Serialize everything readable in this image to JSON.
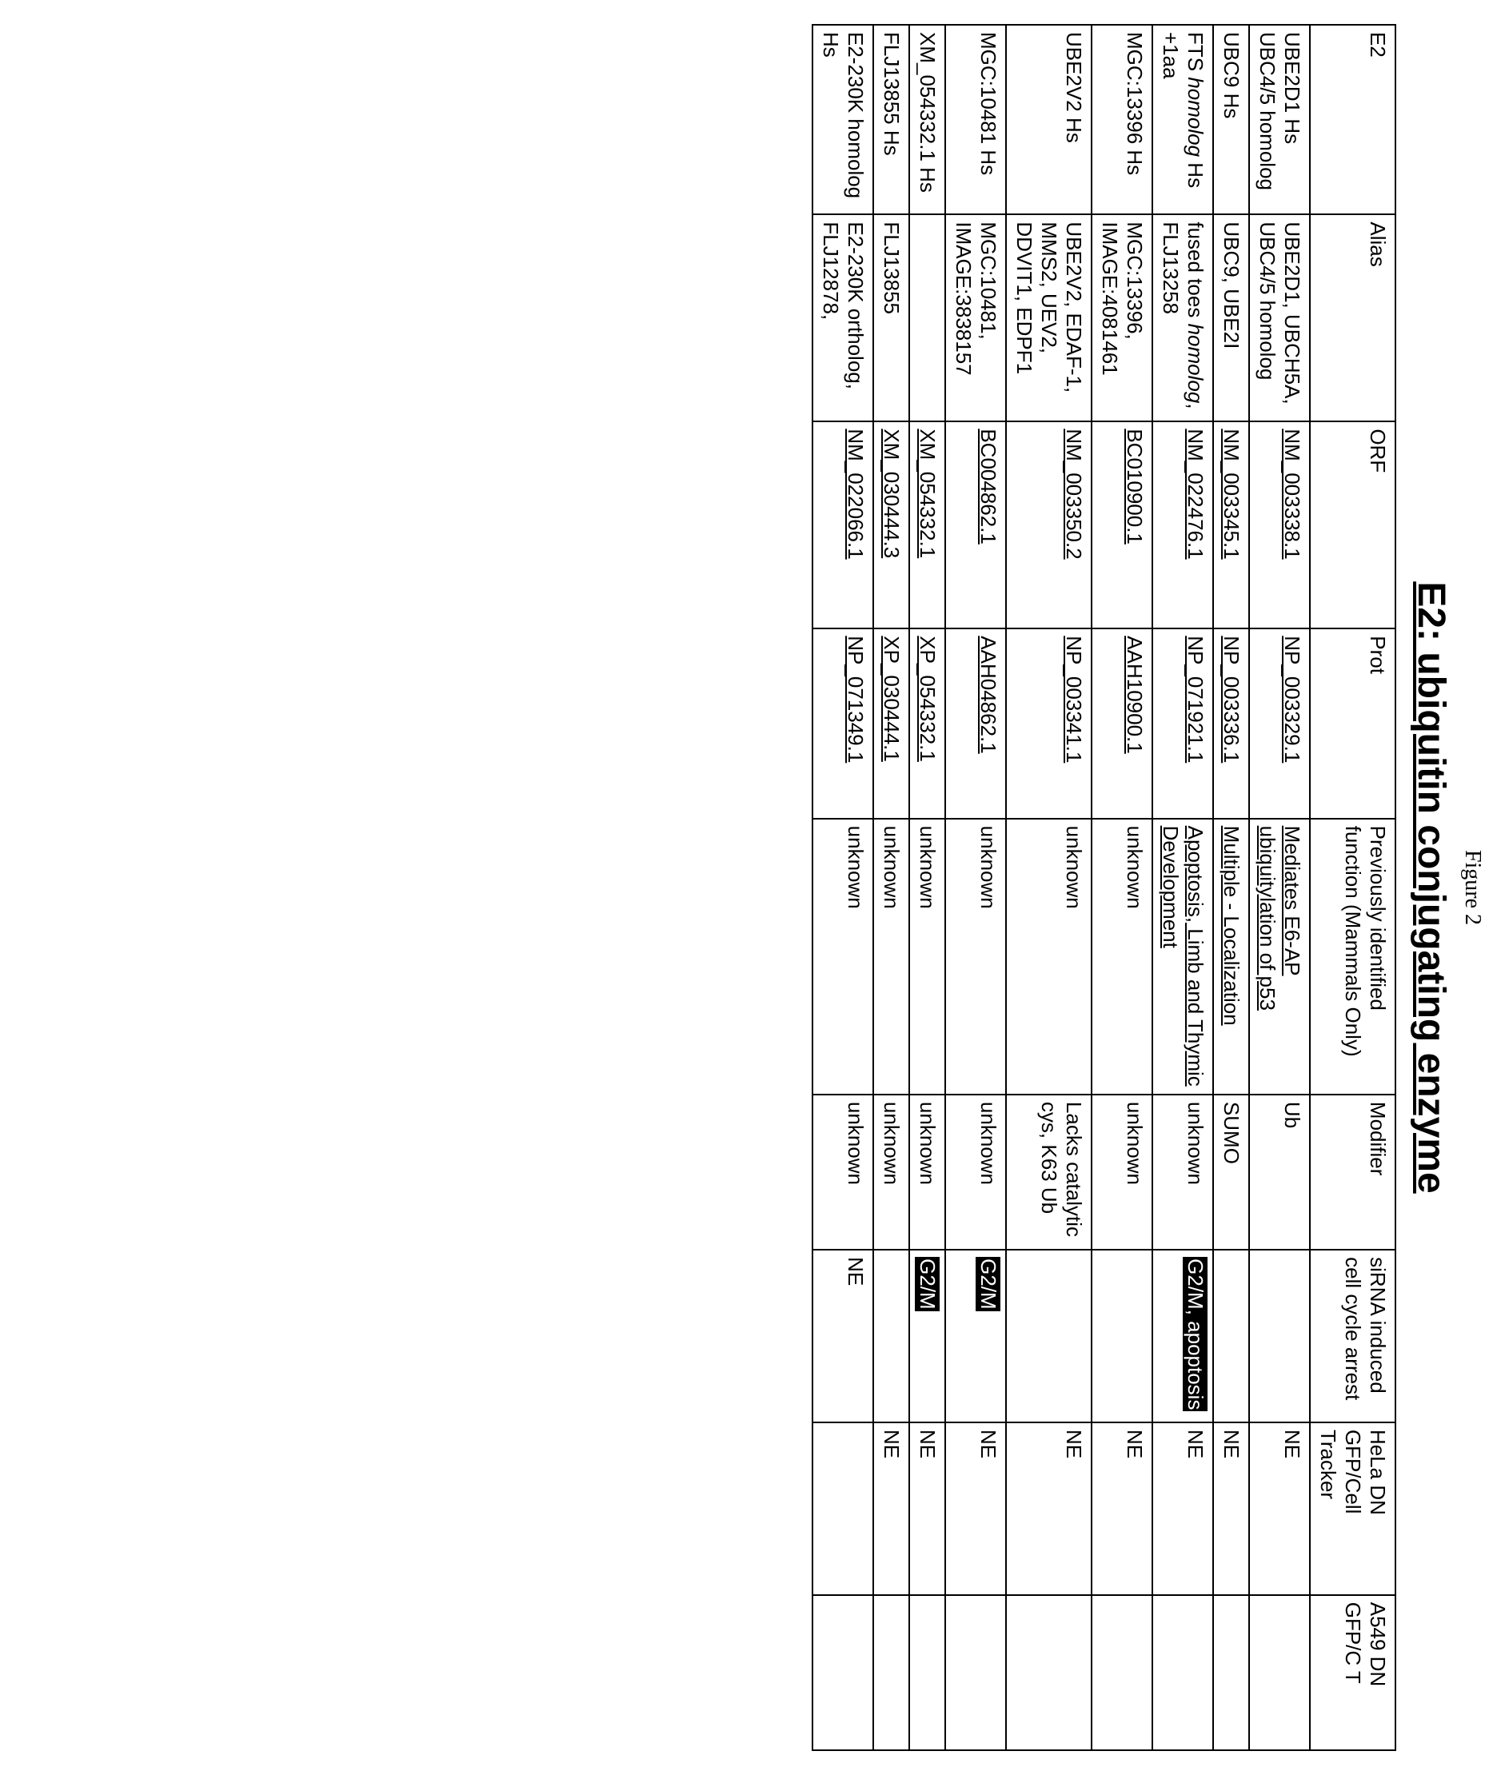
{
  "figure_label": "Figure 2",
  "title": "E2: ubiquitin conjugating enzyme",
  "headers": {
    "c1": "E2",
    "c2": "Alias",
    "c3": "ORF",
    "c4": "Prot",
    "c5": "Previously identified function (Mammals Only)",
    "c6": "Modifier",
    "c7": "siRNA induced cell cycle arrest",
    "c8": "HeLa DN GFP/Cell Tracker",
    "c9": "A549 DN GFP/C T"
  },
  "rows": [
    {
      "e2": "UBE2D1 Hs UBC4/5 homolog",
      "alias": "UBE2D1, UBCH5A, UBC4/5 homolog",
      "orf": "NM_003338.1",
      "prot": "NP_003329.1",
      "func": "Mediates E6-AP ubiquitylation of p53",
      "func_style": "u",
      "modifier": "Ub",
      "sirna": "",
      "hela": "NE",
      "a549": ""
    },
    {
      "e2": "UBC9 Hs",
      "alias": "UBC9, UBE2I",
      "orf": "NM_003345.1",
      "prot": "NP_003336.1",
      "func": "Multiple - Localization",
      "func_style": "u",
      "modifier": "SUMO",
      "sirna": "",
      "hela": "NE",
      "a549": ""
    },
    {
      "e2": "FTS homolog Hs +1aa",
      "e2_italic_part": "homolog",
      "alias": "fused toes homolog, FLJ13258",
      "alias_italic_part": "homolog",
      "orf": "NM_022476.1",
      "prot": "NP_071921.1",
      "func": "Apoptosis, Limb and Thymic Development",
      "func_style": "u",
      "modifier": "unknown",
      "sirna": "G2/M, apoptosis",
      "sirna_hl": true,
      "hela": "NE",
      "a549": ""
    },
    {
      "e2": "MGC:13396 Hs",
      "alias": "MGC:13396, IMAGE:4081461",
      "orf": "BC010900.1",
      "prot": "AAH10900.1",
      "func": "unknown",
      "modifier": "unknown",
      "sirna": "",
      "hela": "NE",
      "a549": ""
    },
    {
      "e2": "UBE2V2 Hs",
      "alias": "UBE2V2, EDAF-1, MMS2, UEV2, DDVIT1, EDPF1",
      "orf": "NM_003350.2",
      "prot": "NP_003341.1",
      "func": "unknown",
      "modifier": "Lacks catalytic cys, K63 Ub",
      "sirna": "",
      "hela": "NE",
      "a549": ""
    },
    {
      "e2": "MGC:10481 Hs",
      "alias": "MGC:10481, IMAGE:3838157",
      "orf": "BC004862.1",
      "prot": "AAH04862.1",
      "func": "unknown",
      "modifier": "unknown",
      "sirna": "G2/M",
      "sirna_hl": true,
      "hela": "NE",
      "a549": ""
    },
    {
      "e2": "XM_054332.1 Hs",
      "alias": "",
      "orf": "XM_054332.1",
      "prot": "XP_054332.1",
      "func": "unknown",
      "modifier": "unknown",
      "sirna": "G2/M",
      "sirna_hl": true,
      "hela": "NE",
      "a549": ""
    },
    {
      "e2": "FLJ13855 Hs",
      "alias": "FLJ13855",
      "orf": "XM_030444.3",
      "prot": "XP_030444.1",
      "func": "unknown",
      "modifier": "unknown",
      "sirna": "",
      "hela": "NE",
      "a549": ""
    },
    {
      "e2": "E2-230K homolog Hs",
      "alias": "E2-230K ortholog, FLJ12878,",
      "orf": "NM_022066.1",
      "prot": "NP_071349.1",
      "func": "unknown",
      "modifier": "unknown",
      "sirna": "NE",
      "hela": "",
      "a549": ""
    }
  ]
}
